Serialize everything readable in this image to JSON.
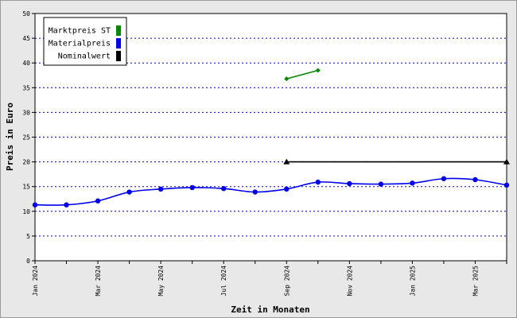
{
  "chart_data": {
    "type": "line",
    "xlabel": "Zeit in Monaten",
    "ylabel": "Preis in Euro",
    "ylim": [
      0,
      50
    ],
    "yticks": [
      0,
      5,
      10,
      15,
      20,
      25,
      30,
      35,
      40,
      45,
      50
    ],
    "grid": true,
    "legend_position": "top-left",
    "x_months": [
      "2024-01",
      "2024-02",
      "2024-03",
      "2024-04",
      "2024-05",
      "2024-06",
      "2024-07",
      "2024-08",
      "2024-09",
      "2024-10",
      "2024-11",
      "2024-12",
      "2025-01",
      "2025-02",
      "2025-03",
      "2025-04"
    ],
    "x_tick_labels": [
      {
        "month": "2024-01",
        "label": "Jan 2024"
      },
      {
        "month": "2024-03",
        "label": "Mar 2024"
      },
      {
        "month": "2024-05",
        "label": "May 2024"
      },
      {
        "month": "2024-07",
        "label": "Jul 2024"
      },
      {
        "month": "2024-09",
        "label": "Sep 2024"
      },
      {
        "month": "2024-11",
        "label": "Nov 2024"
      },
      {
        "month": "2025-01",
        "label": "Jan 2025"
      },
      {
        "month": "2025-03",
        "label": "Mar 2025"
      }
    ],
    "series": [
      {
        "name": "Marktpreis ST",
        "color": "#008800",
        "marker": "diamond",
        "points": [
          {
            "month": "2024-09",
            "y": 36.8
          },
          {
            "month": "2024-10",
            "y": 38.5
          }
        ]
      },
      {
        "name": "Materialpreis",
        "color": "#0000ee",
        "marker": "circle",
        "smooth": true,
        "points": [
          {
            "month": "2024-01",
            "y": 11.3
          },
          {
            "month": "2024-02",
            "y": 11.3
          },
          {
            "month": "2024-03",
            "y": 12.1
          },
          {
            "month": "2024-04",
            "y": 13.9
          },
          {
            "month": "2024-05",
            "y": 14.5
          },
          {
            "month": "2024-06",
            "y": 14.8
          },
          {
            "month": "2024-07",
            "y": 14.6
          },
          {
            "month": "2024-08",
            "y": 13.9
          },
          {
            "month": "2024-09",
            "y": 14.5
          },
          {
            "month": "2024-10",
            "y": 15.9
          },
          {
            "month": "2024-11",
            "y": 15.6
          },
          {
            "month": "2024-12",
            "y": 15.5
          },
          {
            "month": "2025-01",
            "y": 15.7
          },
          {
            "month": "2025-02",
            "y": 16.6
          },
          {
            "month": "2025-03",
            "y": 16.4
          },
          {
            "month": "2025-04",
            "y": 15.3
          }
        ]
      },
      {
        "name": "Nominalwert",
        "color": "#000000",
        "marker": "triangle",
        "points": [
          {
            "month": "2024-09",
            "y": 20
          },
          {
            "month": "2025-04",
            "y": 20
          }
        ]
      }
    ]
  }
}
